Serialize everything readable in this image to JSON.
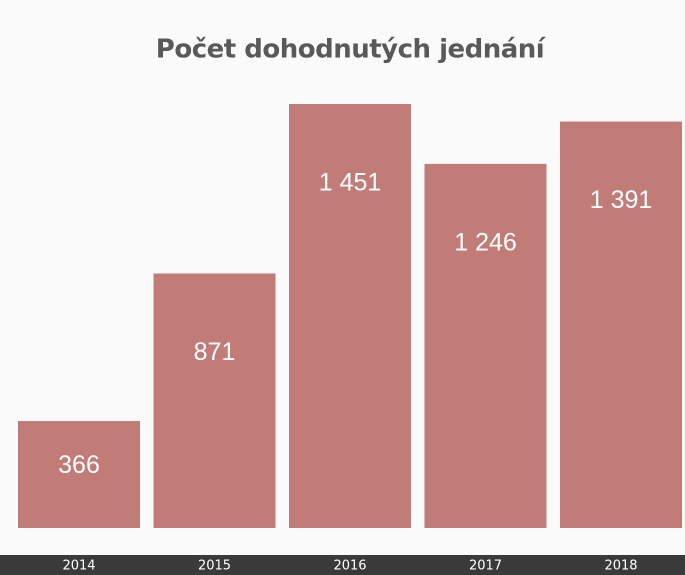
{
  "chart_data": {
    "type": "bar",
    "title": "Počet dohodnutých jednání",
    "categories": [
      "2014",
      "2015",
      "2016",
      "2017",
      "2018"
    ],
    "values": [
      366,
      871,
      1451,
      1246,
      1391
    ],
    "value_labels": [
      "366",
      "871",
      "1 451",
      "1 246",
      "1 391"
    ],
    "color": "#c27c78"
  }
}
